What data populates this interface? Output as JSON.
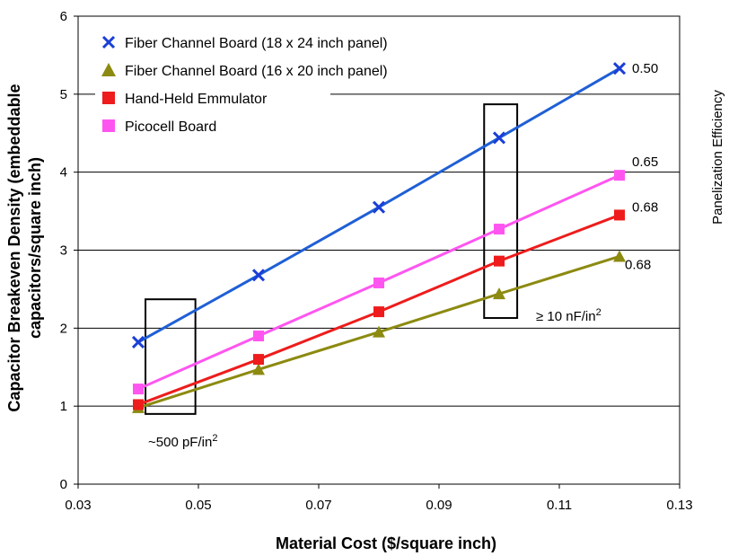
{
  "chart_data": {
    "type": "line",
    "title": "",
    "xlabel": "Material Cost ($/square inch)",
    "ylabel_line1": "Capacitor Breakeven Density (embeddable",
    "ylabel_line2": "capacitors/square inch)",
    "right_label": "Panelization Efficiency",
    "xlim": [
      0.03,
      0.13
    ],
    "ylim": [
      0,
      6
    ],
    "x_ticks": [
      "0.03",
      "0.05",
      "0.07",
      "0.09",
      "0.11",
      "0.13"
    ],
    "y_ticks": [
      "0",
      "1",
      "2",
      "3",
      "4",
      "5",
      "6"
    ],
    "grid": "horizontal",
    "legend_position": "top-left",
    "x": [
      0.04,
      0.06,
      0.08,
      0.1,
      0.12
    ],
    "series": [
      {
        "name": "Fiber Channel Board (18 x 24 inch panel)",
        "marker": "x",
        "color": "#1a3fd6",
        "line_color": "#1f5fd6",
        "values": [
          1.82,
          2.68,
          3.55,
          4.44,
          5.33
        ],
        "end_label": "0.50"
      },
      {
        "name": "Fiber Channel Board (16 x 20 inch panel)",
        "marker": "triangle",
        "color": "#8c8a10",
        "line_color": "#8c8a10",
        "values": [
          0.98,
          1.47,
          1.95,
          2.44,
          2.92
        ],
        "end_label": "0.68"
      },
      {
        "name": "Hand-Held Emmulator",
        "marker": "square",
        "color": "#ee1c1c",
        "line_color": "#ee1c1c",
        "values": [
          1.02,
          1.6,
          2.21,
          2.86,
          3.45
        ],
        "end_label": "0.68"
      },
      {
        "name": "Picocell Board",
        "marker": "square",
        "color": "#ff55f0",
        "line_color": "#ff55f0",
        "values": [
          1.22,
          1.9,
          2.58,
          3.27,
          3.96
        ],
        "end_label": "0.65"
      }
    ],
    "annotations": {
      "low_box_label_base": "~500 pF/in",
      "low_box_label_sup": "2",
      "high_box_label_base": "≥ 10 nF/in",
      "high_box_label_sup": "2"
    }
  }
}
